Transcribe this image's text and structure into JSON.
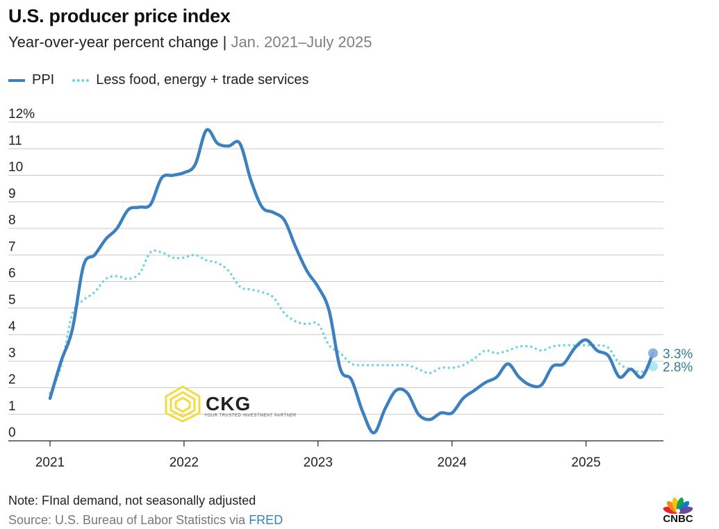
{
  "header": {
    "title": "U.S. producer price index",
    "subtitle_main": "Year-over-year percent change |",
    "subtitle_range": "Jan. 2021–July 2025"
  },
  "footer": {
    "note": "Note: FInal demand, not seasonally adjusted",
    "source_prefix": "Source: U.S. Bureau of Labor Statistics via",
    "source_link": "FRED"
  },
  "watermark": {
    "name": "CKG",
    "tagline": "YOUR TRUSTED INVESTMENT PARTNER"
  },
  "logo": {
    "name": "CNBC"
  },
  "chart_data": {
    "type": "line",
    "title": "U.S. producer price index",
    "subtitle": "Year-over-year percent change | Jan. 2021–July 2025",
    "x_tick_labels": [
      "2021",
      "2022",
      "2023",
      "2024",
      "2025"
    ],
    "x_tick_values": [
      2021,
      2022,
      2023,
      2024,
      2025
    ],
    "xlim": [
      2021,
      2025.5
    ],
    "y_tick_labels": [
      "12%",
      "11",
      "10",
      "9",
      "8",
      "7",
      "6",
      "5",
      "4",
      "3",
      "2",
      "1",
      "0"
    ],
    "y_tick_values": [
      12,
      11,
      10,
      9,
      8,
      7,
      6,
      5,
      4,
      3,
      2,
      1,
      0
    ],
    "ylim": [
      0,
      12
    ],
    "grid": "horizontal",
    "legend_position": "top-left",
    "series": [
      {
        "name": "PPI",
        "style": "solid",
        "color": "#3d80c0",
        "end_label": "3.3%",
        "x": [
          2021.0,
          2021.083,
          2021.167,
          2021.25,
          2021.333,
          2021.417,
          2021.5,
          2021.583,
          2021.667,
          2021.75,
          2021.833,
          2021.917,
          2022.0,
          2022.083,
          2022.167,
          2022.25,
          2022.333,
          2022.417,
          2022.5,
          2022.583,
          2022.667,
          2022.75,
          2022.833,
          2022.917,
          2023.0,
          2023.083,
          2023.167,
          2023.25,
          2023.333,
          2023.417,
          2023.5,
          2023.583,
          2023.667,
          2023.75,
          2023.833,
          2023.917,
          2024.0,
          2024.083,
          2024.167,
          2024.25,
          2024.333,
          2024.417,
          2024.5,
          2024.583,
          2024.667,
          2024.75,
          2024.833,
          2024.917,
          2025.0,
          2025.083,
          2025.167,
          2025.25,
          2025.333,
          2025.417,
          2025.5
        ],
        "y": [
          1.6,
          3.0,
          4.2,
          6.6,
          7.0,
          7.6,
          8.0,
          8.7,
          8.8,
          8.9,
          9.9,
          10.0,
          10.1,
          10.4,
          11.7,
          11.2,
          11.1,
          11.2,
          9.8,
          8.8,
          8.6,
          8.3,
          7.3,
          6.4,
          5.8,
          4.9,
          2.7,
          2.3,
          1.1,
          0.3,
          1.2,
          1.9,
          1.8,
          1.0,
          0.8,
          1.05,
          1.05,
          1.6,
          1.9,
          2.2,
          2.4,
          2.9,
          2.4,
          2.1,
          2.1,
          2.8,
          2.9,
          3.5,
          3.8,
          3.4,
          3.2,
          2.4,
          2.7,
          2.4,
          3.3
        ]
      },
      {
        "name": "Less food, energy + trade services",
        "style": "dotted",
        "color": "#70d4e6",
        "end_label": "2.8%",
        "x": [
          2021.0,
          2021.083,
          2021.167,
          2021.25,
          2021.333,
          2021.417,
          2021.5,
          2021.583,
          2021.667,
          2021.75,
          2021.833,
          2021.917,
          2022.0,
          2022.083,
          2022.167,
          2022.25,
          2022.333,
          2022.417,
          2022.5,
          2022.583,
          2022.667,
          2022.75,
          2022.833,
          2022.917,
          2023.0,
          2023.083,
          2023.167,
          2023.25,
          2023.333,
          2023.417,
          2023.5,
          2023.583,
          2023.667,
          2023.75,
          2023.833,
          2023.917,
          2024.0,
          2024.083,
          2024.167,
          2024.25,
          2024.333,
          2024.417,
          2024.5,
          2024.583,
          2024.667,
          2024.75,
          2024.833,
          2024.917,
          2025.0,
          2025.083,
          2025.167,
          2025.25,
          2025.333,
          2025.417,
          2025.5
        ],
        "y": [
          1.8,
          2.8,
          4.8,
          5.3,
          5.6,
          6.1,
          6.2,
          6.1,
          6.3,
          7.1,
          7.1,
          6.9,
          6.9,
          7.0,
          6.8,
          6.7,
          6.4,
          5.8,
          5.7,
          5.6,
          5.4,
          4.8,
          4.5,
          4.4,
          4.4,
          3.6,
          3.3,
          2.9,
          2.85,
          2.85,
          2.85,
          2.85,
          2.85,
          2.7,
          2.55,
          2.75,
          2.75,
          2.85,
          3.1,
          3.4,
          3.3,
          3.4,
          3.55,
          3.55,
          3.4,
          3.55,
          3.6,
          3.6,
          3.6,
          3.6,
          3.5,
          2.9,
          2.7,
          2.6,
          2.8
        ]
      }
    ]
  }
}
